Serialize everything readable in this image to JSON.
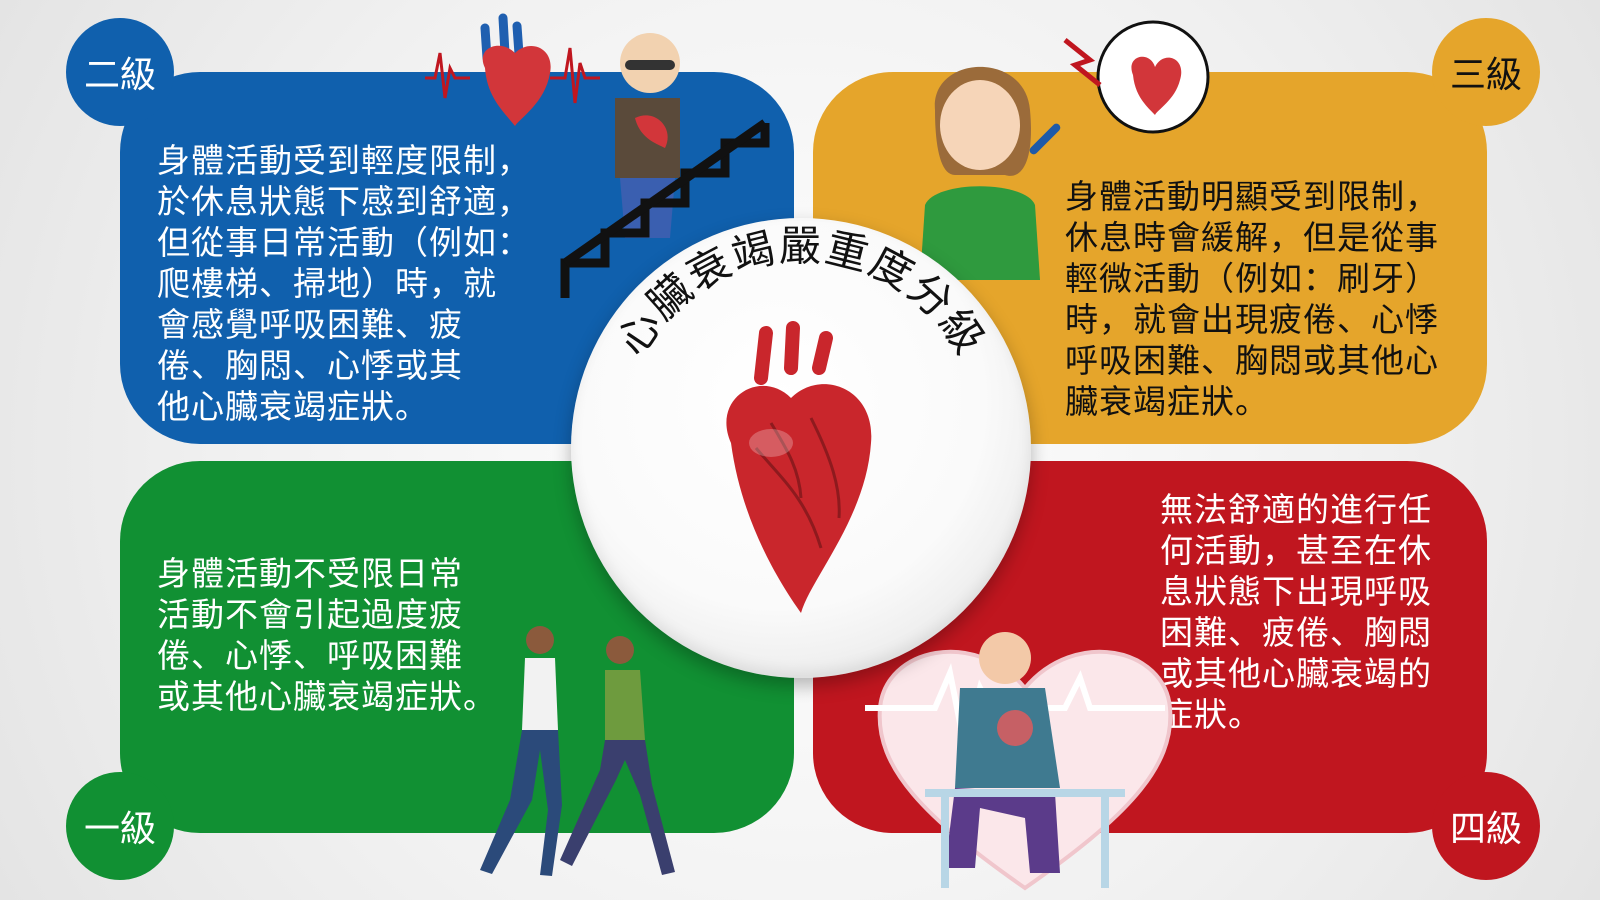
{
  "title": "心臟衰竭嚴重度分級",
  "colors": {
    "level1": "#119033",
    "level2": "#1060ad",
    "level3": "#e5a52b",
    "level4": "#c0161f",
    "heart": "#c9262c"
  },
  "levels": {
    "one": {
      "badge": "一級",
      "text": "身體活動不受限日常\n活動不會引起過度疲\n倦、心悸、呼吸困難\n或其他心臟衰竭症狀。"
    },
    "two": {
      "badge": "二級",
      "text": "身體活動受到輕度限制，\n於休息狀態下感到舒適，\n但從事日常活動（例如：\n爬樓梯、掃地）時，就\n會感覺呼吸困難、疲\n倦、胸悶、心悸或其\n他心臟衰竭症狀。"
    },
    "three": {
      "badge": "三級",
      "text": "身體活動明顯受到限制，\n休息時會緩解，但是從事\n輕微活動（例如：刷牙）\n時，就會出現疲倦、心悸\n呼吸困難、胸悶或其他心\n臟衰竭症狀。"
    },
    "four": {
      "badge": "四級",
      "text": "無法舒適的進行任\n何活動，甚至在休\n息狀態下出現呼吸\n困難、疲倦、胸悶\n或其他心臟衰竭的\n症狀。"
    }
  },
  "icons": {
    "center": "heart-icon",
    "level1": "walking-people-icon",
    "level2": "elderly-stairs-icon",
    "level3": "woman-brushing-teeth-icon",
    "level4": "man-chest-pain-icon"
  }
}
